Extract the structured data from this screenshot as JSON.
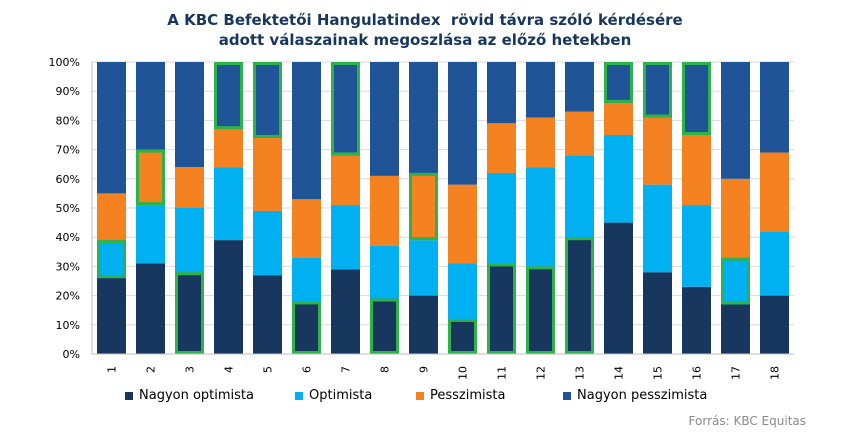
{
  "title_line1": "A KBC Befektetői Hangulatindex  rövid távra szóló kérdésére",
  "title_line2": "adott válaszainak megoszlása az előző hetekben",
  "source": "Forrás: KBC Equitas",
  "colors": {
    "nagyon_optimista": "#17375e",
    "optimista": "#00b0f0",
    "pesszimista": "#f58220",
    "nagyon_pesszimista": "#1f5496",
    "highlight": "#2db34a",
    "grid": "#d9d9d9"
  },
  "chart_data": {
    "type": "bar",
    "stacked": true,
    "categories": [
      "1",
      "2",
      "3",
      "4",
      "5",
      "6",
      "7",
      "8",
      "9",
      "10",
      "11",
      "12",
      "13",
      "14",
      "15",
      "16",
      "17",
      "18"
    ],
    "ylim": [
      0,
      100
    ],
    "yticks": [
      "0%",
      "10%",
      "20%",
      "30%",
      "40%",
      "50%",
      "60%",
      "70%",
      "80%",
      "90%",
      "100%"
    ],
    "grid": true,
    "legend_position": "bottom",
    "series": [
      {
        "name": "Nagyon optimista",
        "values": [
          26,
          31,
          28,
          39,
          27,
          18,
          29,
          19,
          20,
          12,
          31,
          30,
          40,
          45,
          28,
          23,
          17,
          20
        ]
      },
      {
        "name": "Optimista",
        "values": [
          13,
          20,
          22,
          25,
          22,
          15,
          22,
          18,
          19,
          19,
          31,
          34,
          28,
          30,
          30,
          28,
          16,
          22
        ]
      },
      {
        "name": "Pesszimista",
        "values": [
          16,
          19,
          14,
          13,
          25,
          20,
          17,
          24,
          23,
          27,
          17,
          17,
          15,
          11,
          23,
          24,
          27,
          27
        ]
      },
      {
        "name": "Nagyon pesszimista",
        "values": [
          45,
          30,
          36,
          23,
          26,
          47,
          32,
          39,
          38,
          42,
          21,
          19,
          17,
          14,
          19,
          25,
          40,
          31
        ]
      }
    ],
    "highlighted_segment": [
      1,
      2,
      0,
      3,
      3,
      0,
      3,
      0,
      2,
      0,
      0,
      0,
      0,
      3,
      3,
      3,
      1,
      null
    ]
  }
}
